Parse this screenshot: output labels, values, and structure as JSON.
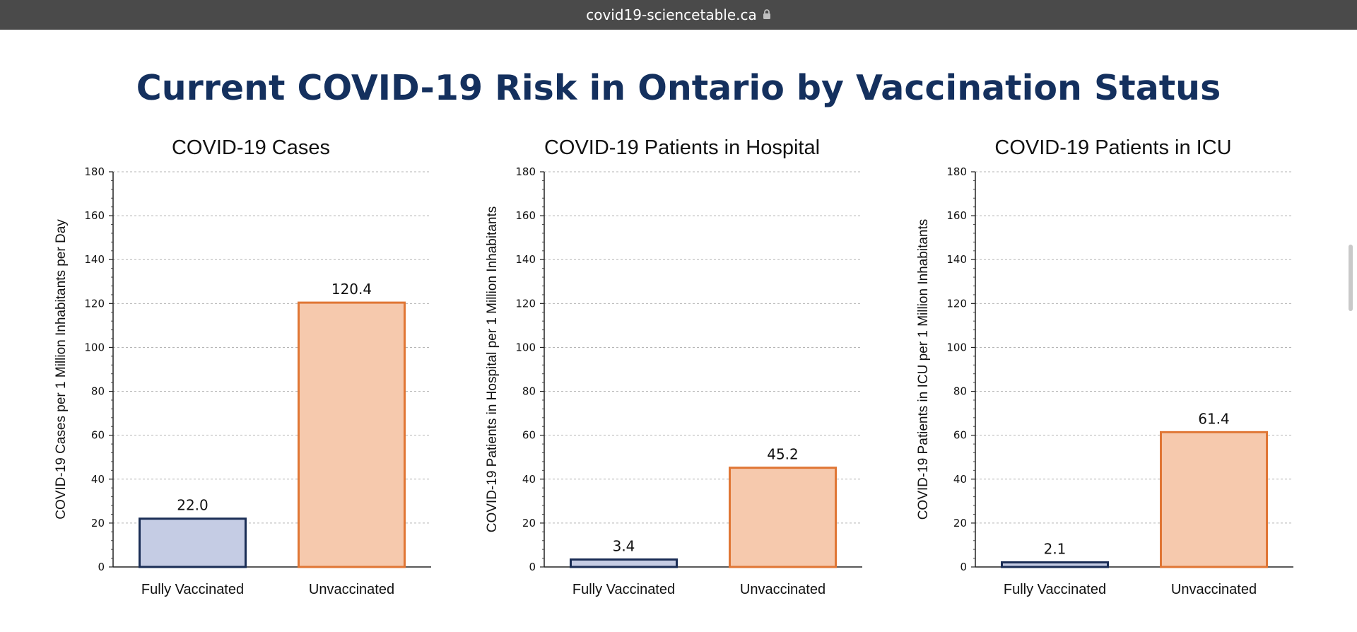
{
  "browser": {
    "url": "covid19-sciencetable.ca",
    "lock_icon": "lock-icon"
  },
  "page": {
    "title": "Current COVID-19 Risk in Ontario by Vaccination Status",
    "title_color": "#14305e"
  },
  "colors": {
    "vaccinated_fill": "#c5cce4",
    "vaccinated_stroke": "#1a2d55",
    "unvaccinated_fill": "#f6c9ad",
    "unvaccinated_stroke": "#e07635"
  },
  "chart_data": [
    {
      "type": "bar",
      "title": "COVID-19 Cases",
      "ylabel": "COVID-19 Cases per 1 Million Inhabitants per Day",
      "xlabel": "",
      "categories": [
        "Fully Vaccinated",
        "Unvaccinated"
      ],
      "values": [
        22.0,
        120.4
      ],
      "value_labels": [
        "22.0",
        "120.4"
      ],
      "ylim": [
        0,
        180
      ],
      "yticks": [
        "0",
        "20",
        "40",
        "60",
        "80",
        "100",
        "120",
        "140",
        "160",
        "180"
      ],
      "grid": true
    },
    {
      "type": "bar",
      "title": "COVID-19 Patients in Hospital",
      "ylabel": "COVID-19 Patients in Hospital per 1 Million Inhabitants",
      "xlabel": "",
      "categories": [
        "Fully Vaccinated",
        "Unvaccinated"
      ],
      "values": [
        3.4,
        45.2
      ],
      "value_labels": [
        "3.4",
        "45.2"
      ],
      "ylim": [
        0,
        180
      ],
      "yticks": [
        "0",
        "20",
        "40",
        "60",
        "80",
        "100",
        "120",
        "140",
        "160",
        "180"
      ],
      "grid": true
    },
    {
      "type": "bar",
      "title": "COVID-19 Patients in ICU",
      "ylabel": "COVID-19 Patients in ICU  per 1 Million Inhabitants",
      "xlabel": "",
      "categories": [
        "Fully Vaccinated",
        "Unvaccinated"
      ],
      "values": [
        2.1,
        61.4
      ],
      "value_labels": [
        "2.1",
        "61.4"
      ],
      "ylim": [
        0,
        180
      ],
      "yticks": [
        "0",
        "20",
        "40",
        "60",
        "80",
        "100",
        "120",
        "140",
        "160",
        "180"
      ],
      "grid": true
    }
  ]
}
